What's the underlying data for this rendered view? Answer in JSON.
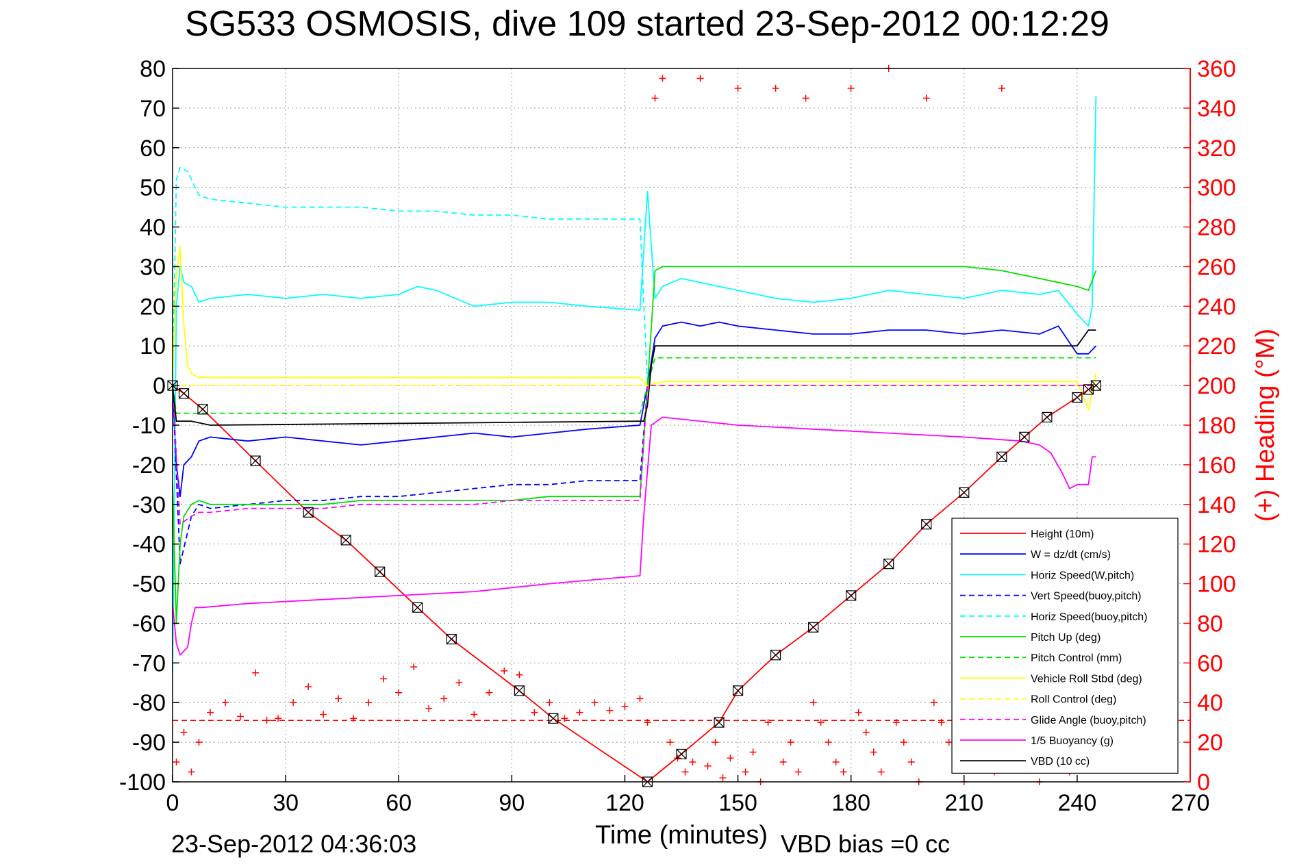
{
  "chart_data": {
    "type": "line",
    "title": "SG533 OSMOSIS, dive 109 started 23-Sep-2012 00:12:29",
    "xlabel": "Time (minutes)",
    "ylabel": "",
    "ylabel_right": "(+) Heading (°M)",
    "xlim": [
      0,
      270
    ],
    "ylim": [
      -100,
      80
    ],
    "ylim_right": [
      0,
      360
    ],
    "xticks": [
      "0",
      "30",
      "60",
      "90",
      "120",
      "150",
      "180",
      "210",
      "240",
      "270"
    ],
    "yticks": [
      "80",
      "70",
      "60",
      "50",
      "40",
      "30",
      "20",
      "10",
      "0",
      "-10",
      "-20",
      "-30",
      "-40",
      "-50",
      "-60",
      "-70",
      "-80",
      "-90",
      "-100"
    ],
    "yticks_right": [
      "360",
      "340",
      "320",
      "300",
      "280",
      "260",
      "240",
      "220",
      "200",
      "180",
      "160",
      "140",
      "120",
      "100",
      "80",
      "60",
      "40",
      "20",
      "0"
    ],
    "grid": true,
    "legend_position": "bottom-right",
    "footer_left": "23-Sep-2012 04:36:03",
    "footer_right": "VBD bias =0 cc",
    "series": [
      {
        "name": "Height (10m)",
        "color": "#ff0000",
        "style": "solid",
        "x": [
          0,
          3,
          8,
          22,
          36,
          46,
          55,
          65,
          74,
          92,
          101,
          126,
          135,
          145,
          150,
          160,
          170,
          180,
          190,
          200,
          210,
          220,
          226,
          232,
          240,
          243,
          245
        ],
        "y": [
          0,
          -2,
          -6,
          -19,
          -32,
          -39,
          -47,
          -56,
          -64,
          -77,
          -84,
          -100,
          -93,
          -85,
          -77,
          -68,
          -61,
          -53,
          -45,
          -35,
          -27,
          -18,
          -13,
          -8,
          -3,
          -1,
          0
        ]
      },
      {
        "name": "W = dz/dt (cm/s)",
        "color": "#0000ff",
        "style": "solid",
        "x": [
          0,
          1,
          2,
          3,
          5,
          7,
          10,
          20,
          30,
          40,
          50,
          60,
          70,
          80,
          90,
          100,
          110,
          124,
          126,
          128,
          130,
          135,
          140,
          145,
          150,
          160,
          170,
          180,
          190,
          200,
          210,
          220,
          230,
          235,
          240,
          243,
          245
        ],
        "y": [
          0,
          -20,
          -28,
          -20,
          -18,
          -14,
          -13,
          -14,
          -13,
          -14,
          -15,
          -14,
          -13,
          -12,
          -13,
          -12,
          -11,
          -10,
          0,
          12,
          15,
          16,
          15,
          16,
          15,
          14,
          13,
          13,
          14,
          14,
          13,
          14,
          13,
          15,
          8,
          8,
          10
        ]
      },
      {
        "name": "Horiz Speed(W,pitch)",
        "color": "#00ffff",
        "style": "solid",
        "x": [
          0,
          1,
          2,
          3,
          5,
          7,
          10,
          20,
          30,
          40,
          50,
          60,
          65,
          70,
          80,
          90,
          100,
          110,
          124,
          126,
          128,
          130,
          135,
          140,
          145,
          150,
          160,
          170,
          180,
          190,
          200,
          210,
          220,
          230,
          235,
          240,
          243,
          244,
          245
        ],
        "y": [
          -72,
          20,
          30,
          26,
          25,
          21,
          22,
          23,
          22,
          23,
          22,
          23,
          25,
          24,
          20,
          21,
          21,
          20,
          19,
          49,
          22,
          25,
          27,
          26,
          25,
          24,
          22,
          21,
          22,
          24,
          23,
          22,
          24,
          23,
          24,
          18,
          15,
          20,
          73
        ]
      },
      {
        "name": "Vert Speed(buoy,pitch)",
        "color": "#0000ff",
        "style": "dashed",
        "x": [
          0,
          2,
          5,
          7,
          10,
          20,
          30,
          40,
          50,
          60,
          70,
          80,
          90,
          100,
          110,
          124,
          126
        ],
        "y": [
          0,
          -45,
          -33,
          -30,
          -31,
          -30,
          -29,
          -29,
          -28,
          -28,
          -27,
          -26,
          -25,
          -25,
          -24,
          -24,
          0
        ]
      },
      {
        "name": "Horiz Speed(buoy,pitch)",
        "color": "#00ffff",
        "style": "dashed",
        "x": [
          0,
          1,
          2,
          4,
          7,
          10,
          20,
          30,
          40,
          50,
          60,
          70,
          80,
          90,
          100,
          110,
          124,
          126
        ],
        "y": [
          0,
          52,
          55,
          54,
          48,
          47,
          46,
          45,
          45,
          45,
          44,
          44,
          43,
          43,
          42,
          42,
          42,
          0
        ]
      },
      {
        "name": "Pitch Up (deg)",
        "color": "#00e000",
        "style": "solid",
        "x": [
          0,
          1,
          2,
          3,
          5,
          7,
          10,
          20,
          30,
          40,
          50,
          60,
          70,
          80,
          90,
          100,
          110,
          124,
          126,
          128,
          130,
          140,
          150,
          160,
          170,
          180,
          190,
          200,
          210,
          220,
          230,
          240,
          243,
          245
        ],
        "y": [
          -25,
          -60,
          -40,
          -33,
          -30,
          -29,
          -30,
          -30,
          -30,
          -30,
          -29,
          -29,
          -29,
          -29,
          -29,
          -28,
          -28,
          -28,
          0,
          29,
          30,
          30,
          30,
          30,
          30,
          30,
          30,
          30,
          30,
          29,
          27,
          25,
          24,
          29
        ]
      },
      {
        "name": "Pitch Control (mm)",
        "color": "#00e000",
        "style": "dashed",
        "x": [
          0,
          1,
          3,
          8,
          124,
          126,
          128,
          245
        ],
        "y": [
          0,
          -7,
          -7,
          -7,
          -7,
          0,
          7,
          7
        ]
      },
      {
        "name": "Vehicle Roll Stbd (deg)",
        "color": "#ffff00",
        "style": "solid",
        "x": [
          0,
          1,
          2,
          3,
          4,
          5,
          7,
          10,
          20,
          30,
          40,
          50,
          60,
          70,
          80,
          90,
          100,
          110,
          124,
          126,
          130,
          140,
          150,
          160,
          170,
          180,
          190,
          200,
          210,
          220,
          230,
          240,
          243,
          245
        ],
        "y": [
          2,
          28,
          35,
          15,
          5,
          3,
          2,
          2,
          2,
          2,
          2,
          2,
          2,
          2,
          2,
          2,
          2,
          2,
          2,
          0,
          1,
          1,
          1,
          1,
          1,
          1,
          1,
          1,
          1,
          1,
          1,
          1,
          -6,
          3
        ]
      },
      {
        "name": "Roll Control (deg)",
        "color": "#ffff00",
        "style": "dashed",
        "x": [
          0,
          5,
          124,
          126,
          245
        ],
        "y": [
          0,
          0,
          0,
          0,
          0
        ]
      },
      {
        "name": "Glide Angle (buoy,pitch)",
        "color": "#ff00ff",
        "style": "dashed",
        "x": [
          0,
          2,
          5,
          7,
          10,
          20,
          30,
          40,
          50,
          60,
          70,
          80,
          90,
          100,
          110,
          124,
          126,
          128,
          245
        ],
        "y": [
          0,
          -35,
          -33,
          -32,
          -32,
          -31,
          -31,
          -31,
          -30,
          -30,
          -30,
          -30,
          -29,
          -29,
          -29,
          -29,
          0,
          0,
          0
        ]
      },
      {
        "name": "1/5 Buoyancy (g)",
        "color": "#ff00ff",
        "style": "solid",
        "x": [
          0,
          1,
          2,
          4,
          5,
          6,
          8,
          20,
          40,
          60,
          80,
          100,
          124,
          125,
          127,
          130,
          150,
          170,
          190,
          210,
          225,
          230,
          233,
          236,
          238,
          240,
          242,
          243,
          244,
          245
        ],
        "y": [
          -55,
          -65,
          -68,
          -66,
          -60,
          -56,
          -56,
          -55,
          -54,
          -53,
          -52,
          -50,
          -48,
          -33,
          -10,
          -8,
          -10,
          -11,
          -12,
          -13,
          -14,
          -15,
          -17,
          -22,
          -26,
          -25,
          -25,
          -25,
          -18,
          -18
        ]
      },
      {
        "name": "VBD (10 cc)",
        "color": "#000000",
        "style": "solid",
        "x": [
          0,
          1,
          2,
          5,
          10,
          124,
          125,
          126,
          127,
          128,
          130,
          240,
          243,
          245
        ],
        "y": [
          0,
          -9,
          -9,
          -9,
          -10,
          -9,
          -9,
          -5,
          5,
          10,
          10,
          10,
          14,
          14
        ]
      }
    ],
    "heading": {
      "color": "#ff0000",
      "marker": "+",
      "axis": "right",
      "desired_heading": 31,
      "x": [
        1,
        3,
        5,
        7,
        10,
        14,
        18,
        22,
        25,
        28,
        32,
        36,
        40,
        44,
        48,
        52,
        56,
        60,
        64,
        68,
        72,
        76,
        80,
        84,
        88,
        92,
        96,
        100,
        104,
        108,
        112,
        116,
        120,
        124,
        126,
        128,
        130,
        132,
        134,
        136,
        138,
        140,
        142,
        144,
        146,
        148,
        150,
        152,
        154,
        156,
        158,
        160,
        162,
        164,
        166,
        168,
        170,
        172,
        174,
        176,
        178,
        180,
        182,
        184,
        186,
        188,
        190,
        192,
        194,
        196,
        198,
        200,
        202,
        204,
        206,
        208,
        210,
        212,
        214,
        216,
        218,
        220,
        222,
        224,
        226,
        228,
        230,
        232,
        234,
        236,
        238,
        240,
        242,
        244
      ],
      "y": [
        10,
        25,
        5,
        20,
        35,
        40,
        33,
        55,
        31,
        32,
        40,
        48,
        34,
        42,
        32,
        40,
        52,
        45,
        58,
        37,
        42,
        50,
        34,
        45,
        56,
        54,
        35,
        40,
        32,
        35,
        40,
        36,
        38,
        42,
        30,
        345,
        355,
        20,
        12,
        5,
        10,
        355,
        8,
        20,
        2,
        12,
        350,
        5,
        15,
        0,
        30,
        350,
        10,
        20,
        5,
        345,
        40,
        30,
        20,
        10,
        5,
        350,
        35,
        25,
        15,
        5,
        360,
        30,
        20,
        10,
        0,
        345,
        40,
        30,
        20,
        10,
        0,
        35,
        25,
        15,
        5,
        350,
        40,
        30,
        20,
        10,
        0,
        35,
        25,
        15,
        5,
        30,
        20,
        10
      ]
    },
    "legend": [
      {
        "label": "Height (10m)",
        "color": "#ff0000",
        "style": "solid"
      },
      {
        "label": "W = dz/dt (cm/s)",
        "color": "#0000ff",
        "style": "solid"
      },
      {
        "label": "Horiz Speed(W,pitch)",
        "color": "#00ffff",
        "style": "solid"
      },
      {
        "label": "Vert Speed(buoy,pitch)",
        "color": "#0000ff",
        "style": "dashed"
      },
      {
        "label": "Horiz Speed(buoy,pitch)",
        "color": "#00ffff",
        "style": "dashed"
      },
      {
        "label": "Pitch Up (deg)",
        "color": "#00e000",
        "style": "solid"
      },
      {
        "label": "Pitch Control (mm)",
        "color": "#00e000",
        "style": "dashed"
      },
      {
        "label": "Vehicle Roll Stbd (deg)",
        "color": "#ffff00",
        "style": "solid"
      },
      {
        "label": "Roll Control (deg)",
        "color": "#ffff00",
        "style": "dashed"
      },
      {
        "label": "Glide Angle (buoy,pitch)",
        "color": "#ff00ff",
        "style": "dashed"
      },
      {
        "label": "1/5 Buoyancy (g)",
        "color": "#ff00ff",
        "style": "solid"
      },
      {
        "label": "VBD (10 cc)",
        "color": "#000000",
        "style": "solid"
      }
    ],
    "height_markers": {
      "x": [
        0,
        3,
        8,
        22,
        36,
        46,
        55,
        65,
        74,
        92,
        101,
        126,
        135,
        145,
        150,
        160,
        170,
        180,
        190,
        200,
        210,
        220,
        226,
        232,
        240,
        243,
        245
      ],
      "y": [
        0,
        -2,
        -6,
        -19,
        -32,
        -39,
        -47,
        -56,
        -64,
        -77,
        -84,
        -100,
        -93,
        -85,
        -77,
        -68,
        -61,
        -53,
        -45,
        -35,
        -27,
        -18,
        -13,
        -8,
        -3,
        -1,
        0
      ]
    }
  }
}
